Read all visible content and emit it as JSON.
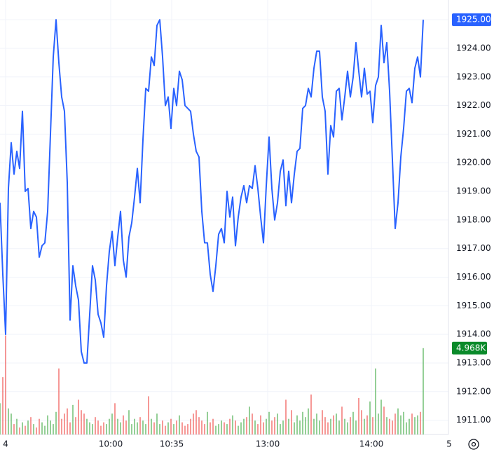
{
  "chart_data": {
    "type": "line",
    "x": [
      0,
      1,
      2,
      3,
      4,
      5,
      6,
      7,
      8,
      9,
      10,
      11,
      12,
      13,
      14,
      15,
      16,
      17,
      18,
      19,
      20,
      21,
      22,
      23,
      24,
      25,
      26,
      27,
      28,
      29,
      30,
      31,
      32,
      33,
      34,
      35,
      36,
      37,
      38,
      39,
      40,
      41,
      42,
      43,
      44,
      45,
      46,
      47,
      48,
      49,
      50,
      51,
      52,
      53,
      54,
      55,
      56,
      57,
      58,
      59,
      60,
      61,
      62,
      63,
      64,
      65,
      66,
      67,
      68,
      69,
      70,
      71,
      72,
      73,
      74,
      75,
      76,
      77,
      78,
      79,
      80,
      81,
      82,
      83,
      84,
      85,
      86,
      87,
      88,
      89,
      90,
      91,
      92,
      93,
      94,
      95,
      96,
      97,
      98,
      99,
      100,
      101,
      102,
      103,
      104,
      105,
      106,
      107,
      108,
      109,
      110,
      111,
      112,
      113,
      114,
      115,
      116,
      117,
      118,
      119,
      120,
      121,
      122,
      123,
      124,
      125,
      126,
      127,
      128,
      129,
      130,
      131,
      132,
      133,
      134,
      135,
      136,
      137,
      138,
      139,
      140,
      141,
      142,
      143,
      144,
      145,
      146,
      147,
      148,
      149,
      150,
      151
    ],
    "series": [
      {
        "color": "#2962ff",
        "values": [
          1918.6,
          1916.1,
          1914.0,
          1919.1,
          1920.7,
          1919.6,
          1920.4,
          1919.8,
          1921.8,
          1919.0,
          1919.1,
          1917.7,
          1918.3,
          1918.1,
          1916.7,
          1917.1,
          1917.2,
          1918.3,
          1921.0,
          1923.7,
          1925.0,
          1923.5,
          1922.3,
          1921.8,
          1919.3,
          1914.5,
          1916.4,
          1915.7,
          1915.2,
          1913.4,
          1913.0,
          1913.0,
          1914.7,
          1916.4,
          1915.9,
          1914.7,
          1914.4,
          1913.9,
          1915.7,
          1916.9,
          1917.6,
          1916.4,
          1917.4,
          1918.3,
          1916.6,
          1916.0,
          1917.4,
          1917.9,
          1918.8,
          1919.8,
          1918.6,
          1920.8,
          1922.6,
          1922.5,
          1923.7,
          1923.4,
          1924.8,
          1925.0,
          1923.7,
          1922.0,
          1922.3,
          1921.2,
          1922.6,
          1922.0,
          1923.2,
          1922.9,
          1922.0,
          1921.9,
          1921.8,
          1921.0,
          1920.4,
          1920.2,
          1918.3,
          1917.2,
          1917.2,
          1916.1,
          1915.5,
          1916.4,
          1917.5,
          1917.7,
          1917.2,
          1919.0,
          1918.1,
          1918.8,
          1917.1,
          1918.1,
          1918.8,
          1919.2,
          1918.6,
          1919.2,
          1919.1,
          1919.9,
          1919.1,
          1918.1,
          1917.2,
          1919.2,
          1920.9,
          1919.1,
          1918.0,
          1918.6,
          1919.7,
          1920.1,
          1918.5,
          1919.7,
          1918.6,
          1919.6,
          1920.4,
          1920.5,
          1921.9,
          1922.0,
          1922.6,
          1922.3,
          1923.3,
          1923.9,
          1923.9,
          1922.3,
          1921.8,
          1919.6,
          1921.3,
          1920.9,
          1922.5,
          1922.6,
          1921.5,
          1922.3,
          1923.2,
          1922.3,
          1923.0,
          1924.2,
          1923.2,
          1922.3,
          1923.3,
          1922.4,
          1922.5,
          1921.4,
          1922.7,
          1923.0,
          1924.8,
          1923.5,
          1924.2,
          1922.5,
          1920.1,
          1917.7,
          1918.6,
          1920.2,
          1921.2,
          1922.5,
          1922.6,
          1922.1,
          1923.3,
          1923.7,
          1923.0,
          1925.0
        ]
      }
    ],
    "volume": {
      "up_color": "#4caf50",
      "down_color": "#ef5350",
      "vlim": [
        0,
        25000
      ],
      "last_label": "4.968K",
      "label_color": "#0a8a2a",
      "values": [
        1800,
        3300,
        5700,
        1500,
        1200,
        600,
        900,
        400,
        700,
        500,
        800,
        1000,
        600,
        400,
        900,
        700,
        500,
        1100,
        800,
        600,
        1300,
        3800,
        900,
        1200,
        1500,
        700,
        1700,
        1000,
        2000,
        1400,
        1200,
        900,
        700,
        600,
        1000,
        800,
        500,
        700,
        600,
        900,
        1200,
        1800,
        900,
        700,
        1100,
        800,
        1400,
        600,
        900,
        700,
        1000,
        800,
        600,
        2200,
        900,
        700,
        1200,
        600,
        800,
        500,
        700,
        900,
        600,
        800,
        1100,
        700,
        500,
        600,
        900,
        1200,
        1400,
        1000,
        800,
        600,
        1300,
        700,
        900,
        500,
        600,
        800,
        700,
        600,
        900,
        1100,
        800,
        500,
        700,
        900,
        1000,
        1600,
        1200,
        800,
        600,
        1100,
        700,
        900,
        1300,
        800,
        1000,
        1200,
        600,
        800,
        2000,
        900,
        1400,
        700,
        1100,
        800,
        1300,
        1000,
        1500,
        2300,
        900,
        1200,
        800,
        1400,
        1000,
        700,
        900,
        1100,
        1200,
        800,
        1600,
        900,
        700,
        1000,
        1300,
        800,
        2100,
        1400,
        900,
        1100,
        1900,
        1000,
        3800,
        1200,
        2000,
        1600,
        1000,
        900,
        800,
        1200,
        1500,
        1100,
        1300,
        700,
        900,
        1200,
        1000,
        1100,
        1300,
        4968
      ]
    },
    "price_label": "1925.00",
    "xlim": [
      0,
      160
    ],
    "xticks": [
      {
        "value": 2,
        "label": "4"
      },
      {
        "value": 39.5,
        "label": "10:00"
      },
      {
        "value": 61.25,
        "label": "10:35"
      },
      {
        "value": 95.5,
        "label": "13:00"
      },
      {
        "value": 132.5,
        "label": "14:00"
      },
      {
        "value": 160.25,
        "label": "5"
      }
    ],
    "ylim": [
      1910.5,
      1925.69
    ],
    "yticks": [
      {
        "value": 1911,
        "label": "1911.00"
      },
      {
        "value": 1912,
        "label": "1912.00"
      },
      {
        "value": 1913,
        "label": "1913.00"
      },
      {
        "value": 1914,
        "label": "1914.00"
      },
      {
        "value": 1915,
        "label": "1915.00"
      },
      {
        "value": 1916,
        "label": "1916.00"
      },
      {
        "value": 1917,
        "label": "1917.00"
      },
      {
        "value": 1918,
        "label": "1918.00"
      },
      {
        "value": 1919,
        "label": "1919.00"
      },
      {
        "value": 1920,
        "label": "1920.00"
      },
      {
        "value": 1921,
        "label": "1921.00"
      },
      {
        "value": 1922,
        "label": "1922.00"
      },
      {
        "value": 1923,
        "label": "1923.00"
      },
      {
        "value": 1924,
        "label": "1924.00"
      },
      {
        "value": 1925,
        "label": "1925.00"
      }
    ],
    "grid": true
  }
}
